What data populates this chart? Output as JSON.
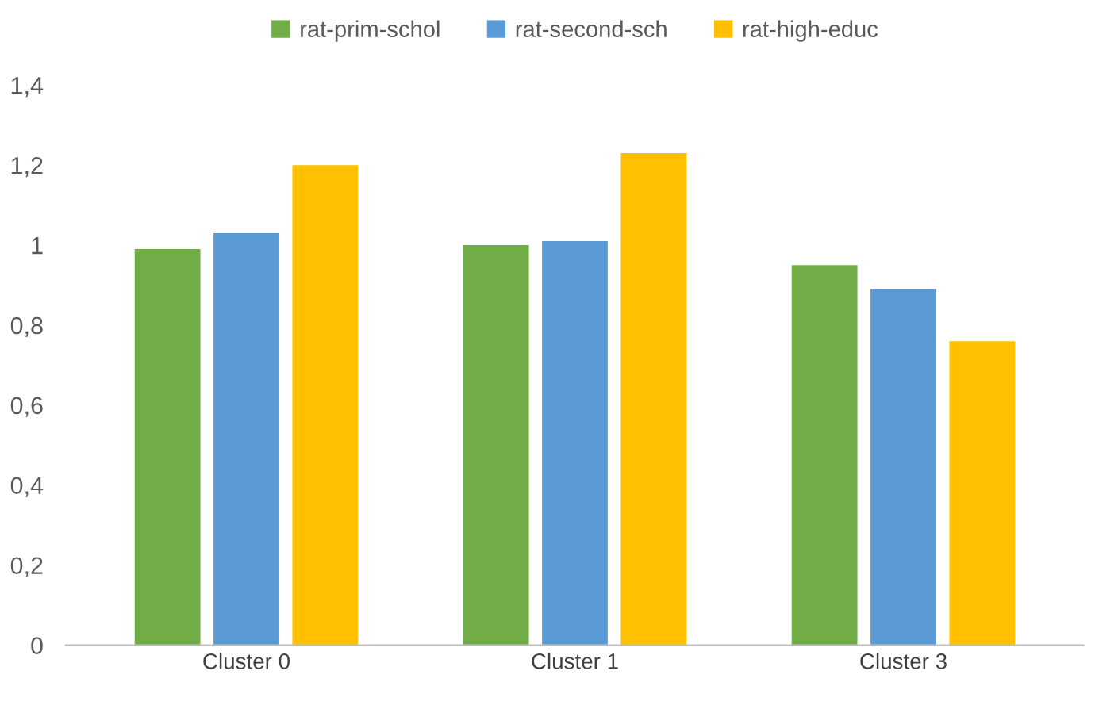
{
  "chart_data": {
    "type": "bar",
    "categories": [
      "Cluster 0",
      "Cluster 1",
      "Cluster 3"
    ],
    "series": [
      {
        "name": "rat-prim-schol",
        "color": "#70ad47",
        "values": [
          0.99,
          1.0,
          0.95
        ]
      },
      {
        "name": "rat-second-sch",
        "color": "#5b9bd5",
        "values": [
          1.03,
          1.01,
          0.89
        ]
      },
      {
        "name": "rat-high-educ",
        "color": "#ffc000",
        "values": [
          1.2,
          1.23,
          0.76
        ]
      }
    ],
    "ylim": [
      0,
      1.4
    ],
    "yticks": [
      0,
      {
        "value": 0.2,
        "label": "0,2"
      },
      {
        "value": 0.4,
        "label": "0,4"
      },
      {
        "value": 0.6,
        "label": "0,6"
      },
      {
        "value": 0.8,
        "label": "0,8"
      },
      1,
      {
        "value": 1.2,
        "label": "1,2"
      },
      {
        "value": 1.4,
        "label": "1,4"
      }
    ],
    "grid": false,
    "legend": "top"
  }
}
